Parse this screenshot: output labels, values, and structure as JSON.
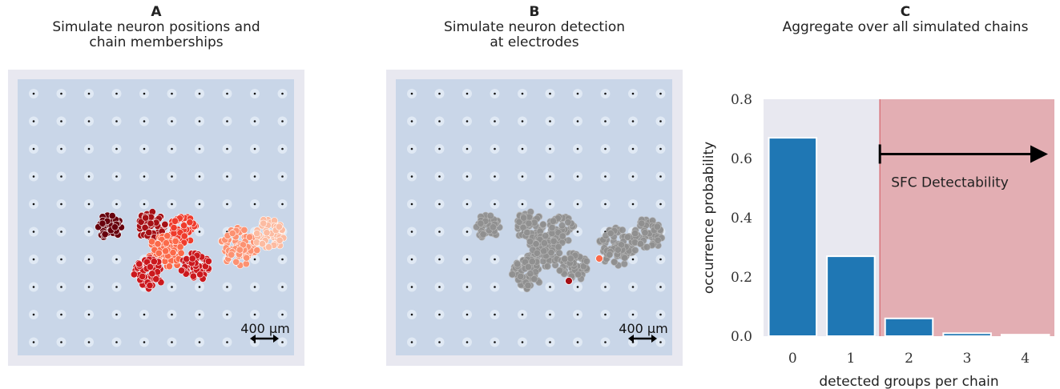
{
  "panels": {
    "a": {
      "letter": "A",
      "line1": "Simulate neuron positions and",
      "line2": "chain memberships",
      "scale_label": "400 µm"
    },
    "b": {
      "letter": "B",
      "line1": "Simulate neuron detection",
      "line2": "at electrodes",
      "scale_label": "400 µm"
    },
    "c": {
      "letter": "C",
      "line1": "Aggregate over all simulated chains"
    }
  },
  "colors": {
    "bar": "#1f77b4",
    "axes_bg": "#e8e8f0",
    "region": "#e3aeb3",
    "region_edge": "#d9747c",
    "map_bg": "#c9d6e8",
    "frame": "#e8e8f0",
    "detected_gray": "#8f8f8f",
    "reds": [
      "#67000d",
      "#a50f15",
      "#cb181d",
      "#ef3b2c",
      "#fb6a4a",
      "#fc9272",
      "#fcbba1"
    ]
  },
  "chart_data": {
    "type": "bar",
    "categories": [
      "0",
      "1",
      "2",
      "3",
      "4"
    ],
    "values": [
      0.67,
      0.27,
      0.06,
      0.01,
      0.005
    ],
    "xlabel": "detected groups per chain",
    "ylabel": "occurrence probability",
    "ylim": [
      0,
      0.8
    ],
    "yticks": [
      "0.0",
      "0.2",
      "0.4",
      "0.6",
      "0.8"
    ],
    "annotation": {
      "text": "SFC Detectability",
      "region_start": 1.5,
      "arrow": "right"
    },
    "grid": false
  }
}
